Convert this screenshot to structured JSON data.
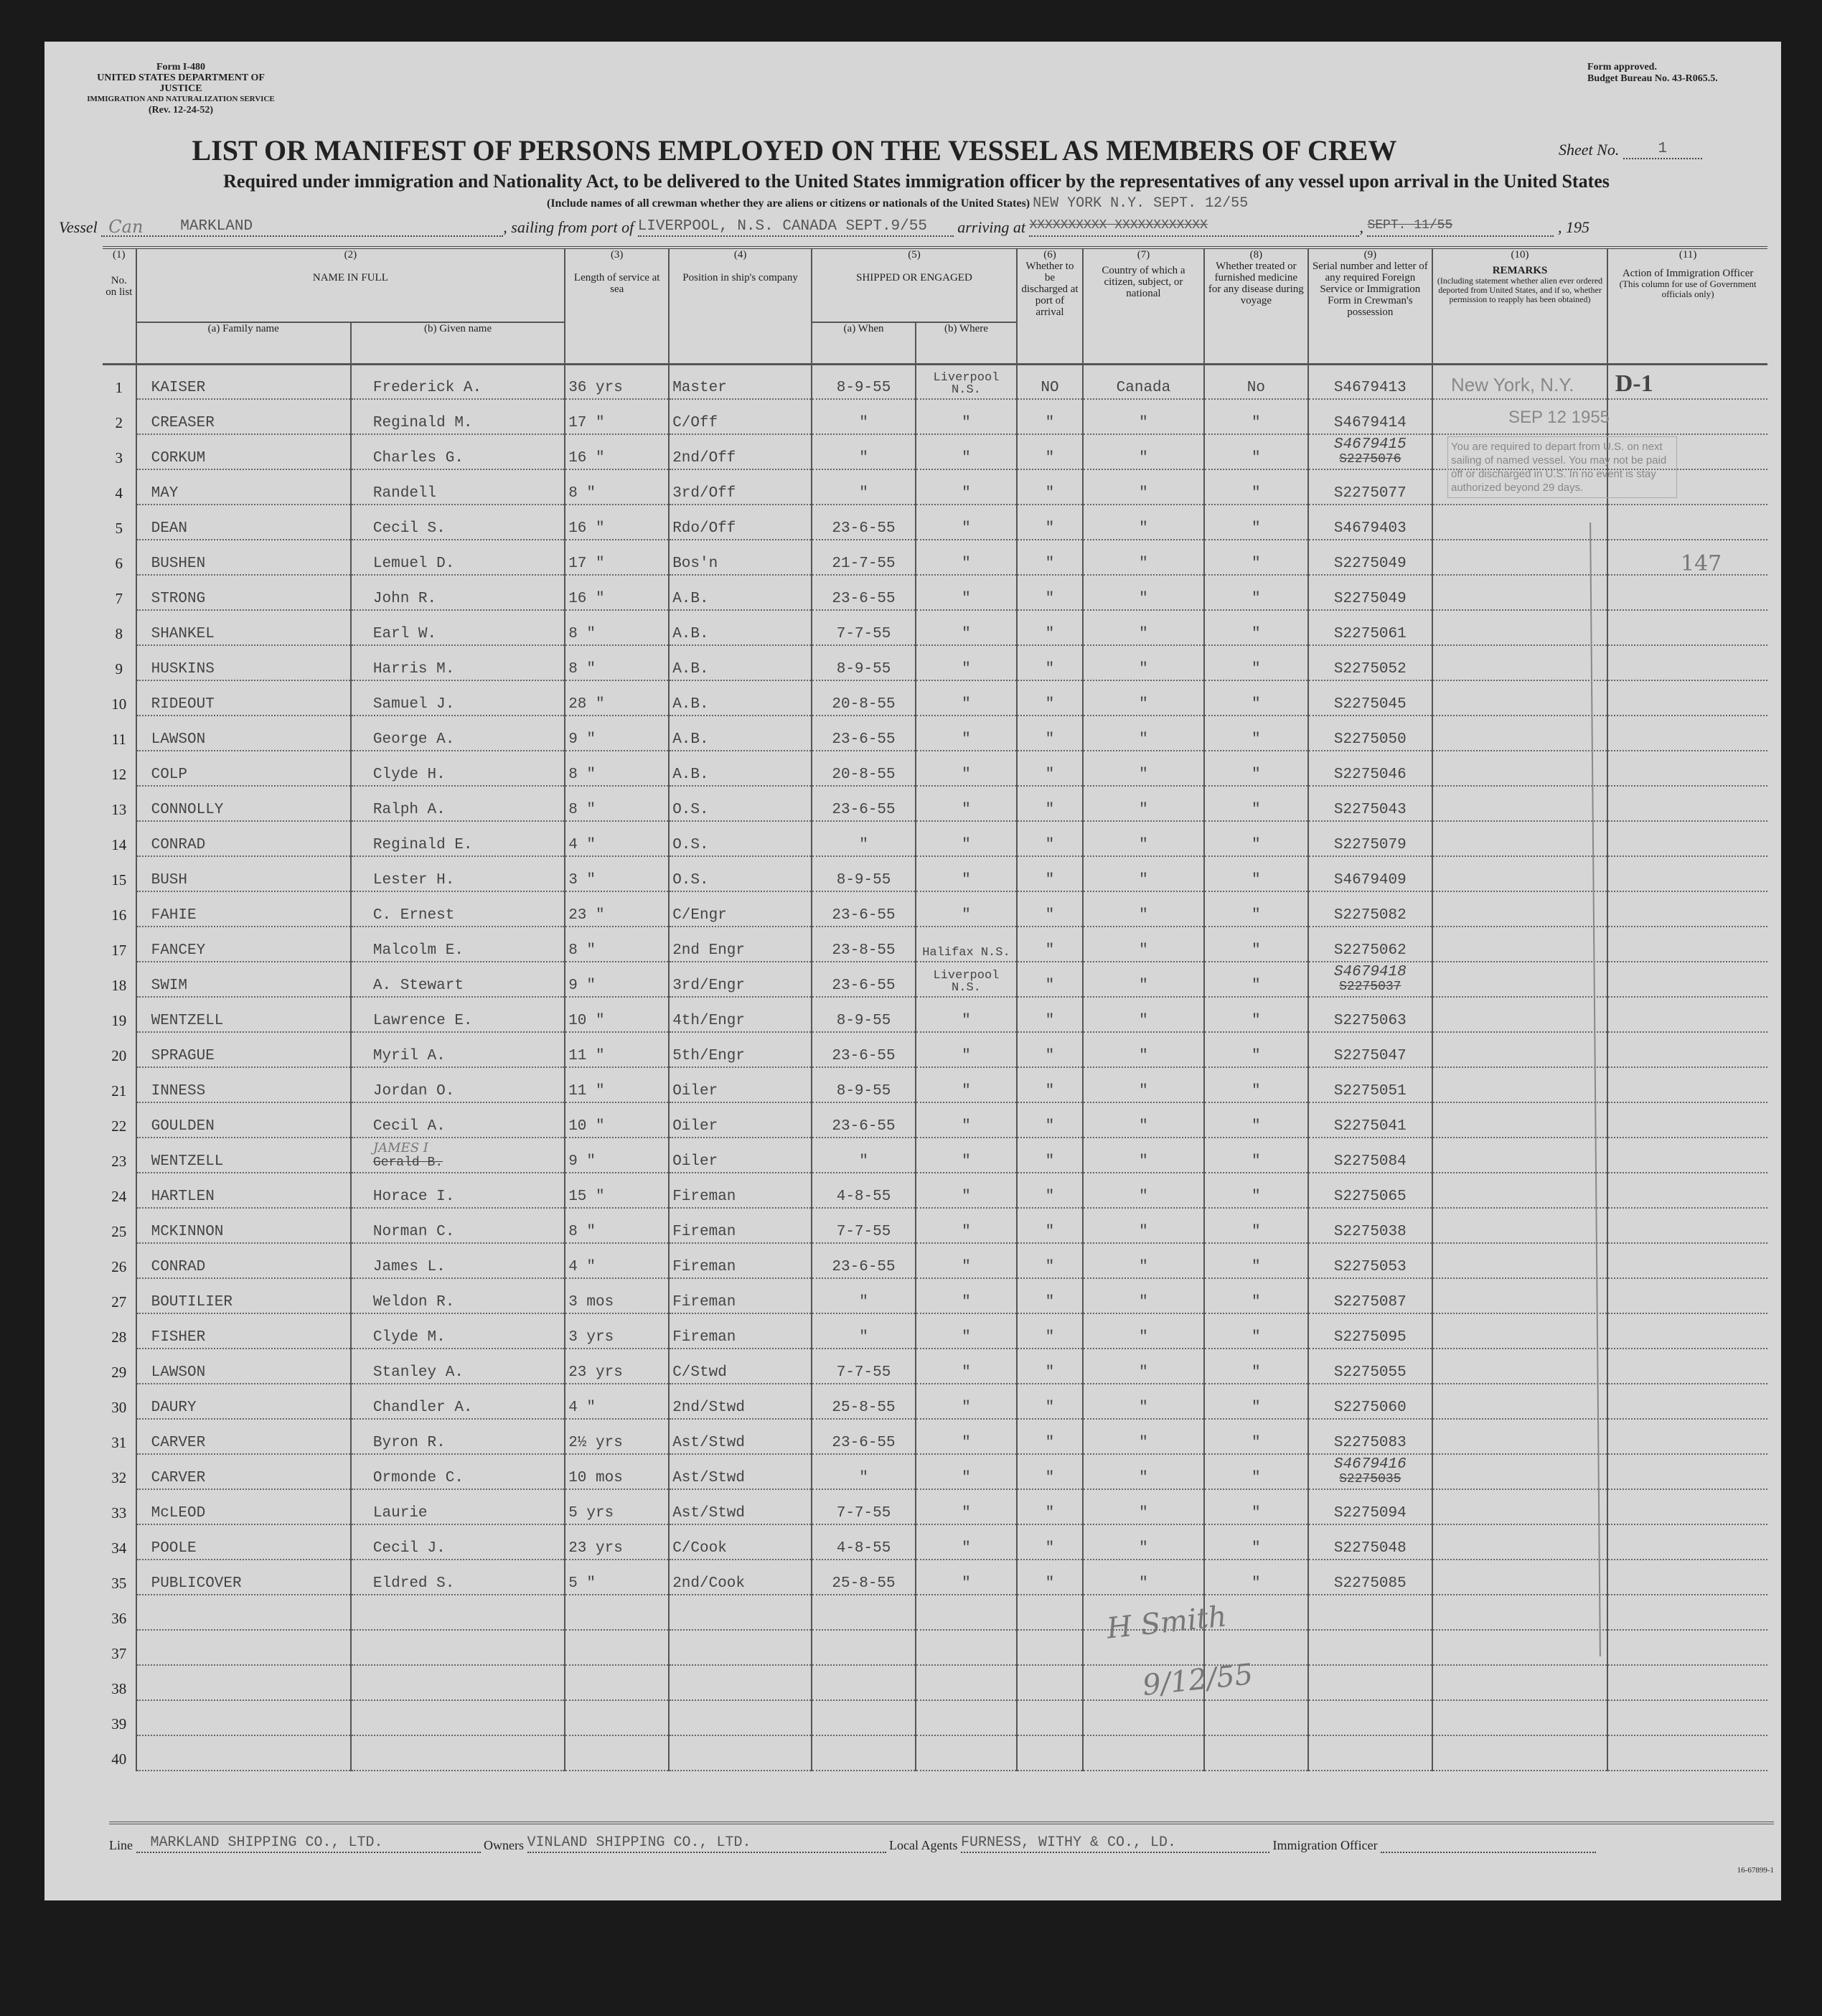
{
  "form": {
    "number": "Form I-480",
    "dept": "UNITED STATES DEPARTMENT OF JUSTICE",
    "service": "IMMIGRATION AND NATURALIZATION SERVICE",
    "rev": "(Rev. 12-24-52)",
    "approved": "Form approved.",
    "budget": "Budget Bureau No. 43-R065.5."
  },
  "title": "LIST OR MANIFEST OF PERSONS EMPLOYED ON THE VESSEL AS MEMBERS OF CREW",
  "sheet_label": "Sheet No.",
  "sheet_no": "1",
  "subtitle": "Required under immigration and Nationality Act, to be delivered to the United States immigration officer by the representatives of any vessel upon arrival in the United States",
  "include_note": "(Include names of all crewman whether they are aliens or citizens or nationals of the United States)",
  "destination": "NEW YORK N.Y. SEPT. 12/55",
  "vessel_label": "Vessel",
  "vessel": "MARKLAND",
  "vessel_note": "Can",
  "sailing_label": "sailing from port of",
  "sailing_from": "LIVERPOOL, N.S. CANADA SEPT.9/55",
  "arriving_label": "arriving at",
  "arriving_struck": "XXXXXXXXXX XXXXXXXXXXXX",
  "arriving_date_struck": "SEPT. 11/55",
  "year_label": ", 195",
  "columns": {
    "c1": "(1)",
    "c1t": "No. on list",
    "c2": "(2)",
    "c2t": "NAME IN FULL",
    "c2a": "(a) Family name",
    "c2b": "(b) Given name",
    "c3": "(3)",
    "c3t": "Length of service at sea",
    "c4": "(4)",
    "c4t": "Position in ship's company",
    "c5": "(5)",
    "c5t": "SHIPPED OR ENGAGED",
    "c5a": "(a) When",
    "c5b": "(b) Where",
    "c6": "(6)",
    "c6t": "Whether to be discharged at port of arrival",
    "c7": "(7)",
    "c7t": "Country of which a citizen, subject, or national",
    "c8": "(8)",
    "c8t": "Whether treated or furnished medicine for any disease during voyage",
    "c9": "(9)",
    "c9t": "Serial number and letter of any required Foreign Service or Immigration Form in Crewman's possession",
    "c10": "(10)",
    "c10t": "REMARKS",
    "c10n": "(Including statement whether alien ever ordered deported from United States, and if so, whether permission to reapply has been obtained)",
    "c11": "(11)",
    "c11t": "Action of Immigration Officer",
    "c11n": "(This column for use of Government officials only)"
  },
  "crew": [
    [
      "KAISER",
      "Frederick A.",
      "36 yrs",
      "Master",
      "8-9-55",
      "Liverpool N.S.",
      "NO",
      "Canada",
      "No",
      "S4679413",
      ""
    ],
    [
      "CREASER",
      "Reginald M.",
      "17 \"",
      "C/Off",
      "\"",
      "\"",
      "\"",
      "\"",
      "\"",
      "S4679414",
      ""
    ],
    [
      "CORKUM",
      "Charles G.",
      "16 \"",
      "2nd/Off",
      "\"",
      "\"",
      "\"",
      "\"",
      "\"",
      "S4679415",
      "S2275076"
    ],
    [
      "MAY",
      "Randell",
      "8 \"",
      "3rd/Off",
      "\"",
      "\"",
      "\"",
      "\"",
      "\"",
      "S2275077",
      ""
    ],
    [
      "DEAN",
      "Cecil S.",
      "16 \"",
      "Rdo/Off",
      "23-6-55",
      "\"",
      "\"",
      "\"",
      "\"",
      "S4679403",
      ""
    ],
    [
      "BUSHEN",
      "Lemuel D.",
      "17 \"",
      "Bos'n",
      "21-7-55",
      "\"",
      "\"",
      "\"",
      "\"",
      "S2275049",
      ""
    ],
    [
      "STRONG",
      "John R.",
      "16 \"",
      "A.B.",
      "23-6-55",
      "\"",
      "\"",
      "\"",
      "\"",
      "S2275049",
      ""
    ],
    [
      "SHANKEL",
      "Earl W.",
      "8 \"",
      "A.B.",
      "7-7-55",
      "\"",
      "\"",
      "\"",
      "\"",
      "S2275061",
      ""
    ],
    [
      "HUSKINS",
      "Harris M.",
      "8 \"",
      "A.B.",
      "8-9-55",
      "\"",
      "\"",
      "\"",
      "\"",
      "S2275052",
      ""
    ],
    [
      "RIDEOUT",
      "Samuel J.",
      "28 \"",
      "A.B.",
      "20-8-55",
      "\"",
      "\"",
      "\"",
      "\"",
      "S2275045",
      ""
    ],
    [
      "LAWSON",
      "George A.",
      "9 \"",
      "A.B.",
      "23-6-55",
      "\"",
      "\"",
      "\"",
      "\"",
      "S2275050",
      ""
    ],
    [
      "COLP",
      "Clyde H.",
      "8 \"",
      "A.B.",
      "20-8-55",
      "\"",
      "\"",
      "\"",
      "\"",
      "S2275046",
      ""
    ],
    [
      "CONNOLLY",
      "Ralph A.",
      "8 \"",
      "O.S.",
      "23-6-55",
      "\"",
      "\"",
      "\"",
      "\"",
      "S2275043",
      ""
    ],
    [
      "CONRAD",
      "Reginald E.",
      "4 \"",
      "O.S.",
      "\"",
      "\"",
      "\"",
      "\"",
      "\"",
      "S2275079",
      ""
    ],
    [
      "BUSH",
      "Lester H.",
      "3 \"",
      "O.S.",
      "8-9-55",
      "\"",
      "\"",
      "\"",
      "\"",
      "S4679409",
      ""
    ],
    [
      "FAHIE",
      "C. Ernest",
      "23 \"",
      "C/Engr",
      "23-6-55",
      "\"",
      "\"",
      "\"",
      "\"",
      "S2275082",
      ""
    ],
    [
      "FANCEY",
      "Malcolm E.",
      "8 \"",
      "2nd Engr",
      "23-8-55",
      "Halifax N.S.",
      "\"",
      "\"",
      "\"",
      "S2275062",
      ""
    ],
    [
      "SWIM",
      "A. Stewart",
      "9 \"",
      "3rd/Engr",
      "23-6-55",
      "Liverpool N.S.",
      "\"",
      "\"",
      "\"",
      "S4679418",
      "S2275037"
    ],
    [
      "WENTZELL",
      "Lawrence E.",
      "10 \"",
      "4th/Engr",
      "8-9-55",
      "\"",
      "\"",
      "\"",
      "\"",
      "S2275063",
      ""
    ],
    [
      "SPRAGUE",
      "Myril A.",
      "11 \"",
      "5th/Engr",
      "23-6-55",
      "\"",
      "\"",
      "\"",
      "\"",
      "S2275047",
      ""
    ],
    [
      "INNESS",
      "Jordan O.",
      "11 \"",
      "Oiler",
      "8-9-55",
      "\"",
      "\"",
      "\"",
      "\"",
      "S2275051",
      ""
    ],
    [
      "GOULDEN",
      "Cecil A.",
      "10 \"",
      "Oiler",
      "23-6-55",
      "\"",
      "\"",
      "\"",
      "\"",
      "S2275041",
      ""
    ],
    [
      "WENTZELL",
      "JAMES I",
      "9 \"",
      "Oiler",
      "\"",
      "\"",
      "\"",
      "\"",
      "\"",
      "S2275084",
      ""
    ],
    [
      "HARTLEN",
      "Horace I.",
      "15 \"",
      "Fireman",
      "4-8-55",
      "\"",
      "\"",
      "\"",
      "\"",
      "S2275065",
      ""
    ],
    [
      "MCKINNON",
      "Norman C.",
      "8 \"",
      "Fireman",
      "7-7-55",
      "\"",
      "\"",
      "\"",
      "\"",
      "S2275038",
      ""
    ],
    [
      "CONRAD",
      "James L.",
      "4 \"",
      "Fireman",
      "23-6-55",
      "\"",
      "\"",
      "\"",
      "\"",
      "S2275053",
      ""
    ],
    [
      "BOUTILIER",
      "Weldon R.",
      "3 mos",
      "Fireman",
      "\"",
      "\"",
      "\"",
      "\"",
      "\"",
      "S2275087",
      ""
    ],
    [
      "FISHER",
      "Clyde M.",
      "3 yrs",
      "Fireman",
      "\"",
      "\"",
      "\"",
      "\"",
      "\"",
      "S2275095",
      ""
    ],
    [
      "LAWSON",
      "Stanley A.",
      "23 yrs",
      "C/Stwd",
      "7-7-55",
      "\"",
      "\"",
      "\"",
      "\"",
      "S2275055",
      ""
    ],
    [
      "DAURY",
      "Chandler A.",
      "4 \"",
      "2nd/Stwd",
      "25-8-55",
      "\"",
      "\"",
      "\"",
      "\"",
      "S2275060",
      ""
    ],
    [
      "CARVER",
      "Byron R.",
      "2½ yrs",
      "Ast/Stwd",
      "23-6-55",
      "\"",
      "\"",
      "\"",
      "\"",
      "S2275083",
      ""
    ],
    [
      "CARVER",
      "Ormonde C.",
      "10 mos",
      "Ast/Stwd",
      "\"",
      "\"",
      "\"",
      "\"",
      "\"",
      "S4679416",
      "S2275035"
    ],
    [
      "McLEOD",
      "Laurie",
      "5 yrs",
      "Ast/Stwd",
      "7-7-55",
      "\"",
      "\"",
      "\"",
      "\"",
      "S2275094",
      ""
    ],
    [
      "POOLE",
      "Cecil J.",
      "23 yrs",
      "C/Cook",
      "4-8-55",
      "\"",
      "\"",
      "\"",
      "\"",
      "S2275048",
      ""
    ],
    [
      "PUBLICOVER",
      "Eldred S.",
      "5 \"",
      "2nd/Cook",
      "25-8-55",
      "\"",
      "\"",
      "\"",
      "\"",
      "S2275085",
      ""
    ]
  ],
  "struck_given_23": "Gerald B.",
  "total_rows": 40,
  "stamps": {
    "port": "New York, N.Y.",
    "code": "D-1",
    "date": "SEP 12 1955",
    "notice": "You are required to depart from U.S. on next sailing of named vessel. You may not be paid off or discharged in U.S. In no event is stay authorized beyond 29 days."
  },
  "annotations": {
    "margin_number": "147",
    "signature": "H Smith",
    "signature_date": "9/12/55"
  },
  "footer": {
    "line_label": "Line",
    "line": "MARKLAND SHIPPING CO., LTD.",
    "owners_label": "Owners",
    "owners": "VINLAND SHIPPING CO., LTD.",
    "agents_label": "Local Agents",
    "agents": "FURNESS, WITHY & CO., LD.",
    "officer_label": "Immigration Officer",
    "print_code": "16-67899-1"
  }
}
